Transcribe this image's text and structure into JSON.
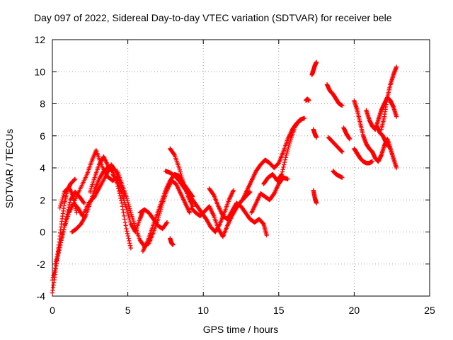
{
  "chart_data": {
    "type": "scatter",
    "title": "Day 097 of 2022, Sidereal Day-to-day VTEC variation (SDTVAR) for receiver bele",
    "xlabel": "GPS time / hours",
    "ylabel": "SDTVAR / TECUs",
    "xlim": [
      0,
      25
    ],
    "ylim": [
      -4,
      12
    ],
    "xticks": [
      "0",
      "5",
      "10",
      "15",
      "20",
      "25"
    ],
    "yticks": [
      "-4",
      "-2",
      "0",
      "2",
      "4",
      "6",
      "8",
      "10",
      "12"
    ],
    "grid": true,
    "marker": "plus",
    "color": "#ff0000",
    "series": [
      {
        "name": "s1",
        "x": [
          0.0,
          0.2,
          0.4,
          0.6,
          0.8,
          1.0,
          1.2,
          1.5
        ],
        "y": [
          -3.8,
          -2.5,
          -1.0,
          0.5,
          1.8,
          2.6,
          3.0,
          3.3
        ]
      },
      {
        "name": "s2",
        "x": [
          0.0,
          0.3,
          0.6,
          0.9,
          1.2,
          1.5,
          1.8,
          2.1
        ],
        "y": [
          -3.0,
          -1.8,
          -0.5,
          0.8,
          2.0,
          2.5,
          2.2,
          1.8
        ]
      },
      {
        "name": "s3",
        "x": [
          0.2,
          0.5,
          0.8,
          1.1,
          1.4,
          1.7,
          2.0
        ],
        "y": [
          -2.0,
          -0.8,
          0.3,
          1.2,
          1.8,
          1.5,
          1.0
        ]
      },
      {
        "name": "s4",
        "x": [
          0.5,
          0.8,
          1.1,
          1.4,
          1.6
        ],
        "y": [
          1.5,
          2.5,
          2.8,
          2.2,
          1.2
        ]
      },
      {
        "name": "s5",
        "x": [
          1.3,
          1.6,
          1.9,
          2.2,
          2.5,
          2.8,
          3.1,
          3.4,
          3.7,
          4.0,
          4.3,
          4.6,
          4.9,
          5.2
        ],
        "y": [
          0.0,
          0.2,
          0.5,
          1.0,
          1.8,
          2.6,
          3.3,
          3.8,
          4.0,
          3.8,
          3.0,
          1.8,
          0.2,
          -1.0
        ]
      },
      {
        "name": "s6",
        "x": [
          1.5,
          1.9,
          2.3,
          2.6,
          2.9,
          3.2,
          3.6,
          4.0,
          4.4
        ],
        "y": [
          2.0,
          2.8,
          3.6,
          4.4,
          5.1,
          4.3,
          3.5,
          3.2,
          3.5
        ]
      },
      {
        "name": "s7",
        "x": [
          2.0,
          2.4,
          2.8,
          3.2,
          3.6,
          3.9,
          4.2,
          4.5,
          4.8
        ],
        "y": [
          1.0,
          1.8,
          2.2,
          2.9,
          3.6,
          4.2,
          3.8,
          3.0,
          2.2
        ]
      },
      {
        "name": "s8",
        "x": [
          2.5,
          2.8,
          3.1,
          3.4,
          3.7
        ],
        "y": [
          2.5,
          3.4,
          4.2,
          4.7,
          4.1
        ]
      },
      {
        "name": "s9",
        "x": [
          4.3,
          4.6,
          4.9,
          5.2,
          5.5,
          5.8,
          6.1,
          6.4,
          6.7,
          7.0,
          7.3,
          7.6,
          7.9,
          8.2,
          8.5,
          8.8,
          9.1
        ],
        "y": [
          3.8,
          3.0,
          2.2,
          1.2,
          0.3,
          -0.5,
          -0.9,
          -0.7,
          0.0,
          0.8,
          1.8,
          2.6,
          3.2,
          3.0,
          2.4,
          1.8,
          1.2
        ]
      },
      {
        "name": "s10",
        "x": [
          4.0,
          4.3,
          4.6,
          4.9,
          5.2,
          5.5,
          5.8,
          6.0
        ],
        "y": [
          3.6,
          3.2,
          2.4,
          1.5,
          0.5,
          0.0,
          0.8,
          1.3
        ]
      },
      {
        "name": "s11",
        "x": [
          6.0,
          6.3,
          6.6,
          6.9,
          7.2,
          7.5,
          7.8,
          8.1,
          8.4,
          8.7,
          9.0,
          9.3
        ],
        "y": [
          -1.2,
          -0.6,
          0.2,
          1.0,
          1.8,
          2.6,
          3.2,
          3.6,
          3.5,
          3.0,
          2.6,
          2.2
        ]
      },
      {
        "name": "s12",
        "x": [
          5.8,
          6.1,
          6.4,
          6.7,
          7.0,
          7.3,
          7.6
        ],
        "y": [
          1.2,
          1.4,
          1.2,
          0.8,
          0.4,
          0.2,
          0.6
        ]
      },
      {
        "name": "s13",
        "x": [
          7.5,
          7.8,
          8.1,
          8.4,
          8.7,
          9.0,
          9.3,
          9.6
        ],
        "y": [
          3.8,
          3.7,
          3.5,
          3.2,
          2.8,
          2.4,
          2.0,
          1.6
        ]
      },
      {
        "name": "s14",
        "x": [
          7.8,
          8.1,
          8.4,
          8.7,
          9.0,
          9.3
        ],
        "y": [
          5.2,
          4.8,
          4.0,
          3.0,
          2.2,
          1.6
        ]
      },
      {
        "name": "s15",
        "x": [
          7.8,
          7.9,
          8.0
        ],
        "y": [
          -0.4,
          -0.7,
          -0.8
        ]
      },
      {
        "name": "s16",
        "x": [
          9.2,
          9.5,
          9.8,
          10.1,
          10.4,
          10.7,
          11.0,
          11.3,
          11.6,
          11.9,
          12.2,
          12.5,
          12.8,
          13.1
        ],
        "y": [
          1.5,
          1.2,
          1.0,
          1.3,
          1.6,
          1.0,
          0.2,
          -0.3,
          0.4,
          1.0,
          1.5,
          1.9,
          2.2,
          2.5
        ]
      },
      {
        "name": "s17",
        "x": [
          9.6,
          9.9,
          10.2,
          10.5,
          10.8,
          11.1,
          11.4,
          11.7,
          12.0
        ],
        "y": [
          1.6,
          1.2,
          0.8,
          0.3,
          0.0,
          0.5,
          1.2,
          2.0,
          2.6
        ]
      },
      {
        "name": "s18",
        "x": [
          10.4,
          10.7,
          11.0,
          11.3,
          11.6,
          11.9,
          12.2,
          12.5,
          12.8,
          13.1,
          13.4,
          13.7,
          14.0,
          14.2
        ],
        "y": [
          2.7,
          2.3,
          1.6,
          1.0,
          0.8,
          1.3,
          1.8,
          1.6,
          1.2,
          0.8,
          0.6,
          0.8,
          0.5,
          -0.2
        ]
      },
      {
        "name": "s19",
        "x": [
          12.6,
          12.9,
          13.2,
          13.5,
          13.8,
          14.1,
          14.4,
          14.7,
          15.0,
          15.3,
          15.6,
          15.9,
          16.2,
          16.5
        ],
        "y": [
          2.0,
          2.6,
          3.2,
          3.8,
          4.2,
          4.5,
          4.3,
          4.0,
          4.3,
          5.0,
          5.8,
          6.4,
          6.8,
          7.0
        ]
      },
      {
        "name": "s20",
        "x": [
          14.0,
          14.3,
          14.6,
          14.9,
          15.2,
          15.5,
          15.8,
          16.1,
          16.4,
          16.7
        ],
        "y": [
          3.0,
          3.4,
          3.6,
          3.2,
          3.6,
          4.8,
          5.8,
          6.6,
          7.0,
          7.1
        ]
      },
      {
        "name": "s21",
        "x": [
          13.2,
          13.5,
          13.8,
          14.1,
          14.4,
          14.7,
          15.0,
          15.3,
          15.6
        ],
        "y": [
          1.2,
          1.8,
          2.4,
          2.2,
          2.0,
          2.4,
          3.0,
          3.4,
          3.3
        ]
      },
      {
        "name": "s22",
        "x": [
          16.8,
          16.9,
          17.0
        ],
        "y": [
          8.2,
          8.3,
          8.2
        ]
      },
      {
        "name": "s23",
        "x": [
          17.2,
          17.3,
          17.4,
          17.5
        ],
        "y": [
          9.8,
          10.1,
          10.4,
          10.6
        ]
      },
      {
        "name": "s24",
        "x": [
          17.3,
          17.4,
          17.5
        ],
        "y": [
          6.4,
          6.1,
          5.9
        ]
      },
      {
        "name": "s25",
        "x": [
          17.3,
          17.4,
          17.5
        ],
        "y": [
          2.6,
          2.1,
          1.8
        ]
      },
      {
        "name": "s26",
        "x": [
          18.2,
          18.4,
          18.6,
          18.8,
          19.0,
          19.2
        ],
        "y": [
          9.2,
          8.8,
          8.6,
          8.3,
          8.0,
          7.9
        ]
      },
      {
        "name": "s27",
        "x": [
          18.3,
          18.6,
          18.9,
          19.2
        ],
        "y": [
          5.9,
          5.6,
          5.3,
          5.0
        ]
      },
      {
        "name": "s28",
        "x": [
          18.6,
          18.8,
          19.0,
          19.2
        ],
        "y": [
          3.8,
          3.6,
          3.5,
          3.4
        ]
      },
      {
        "name": "s29",
        "x": [
          19.3,
          19.5,
          19.7
        ],
        "y": [
          6.5,
          6.1,
          5.8
        ]
      },
      {
        "name": "s30",
        "x": [
          20.0,
          20.2,
          20.4,
          20.6,
          20.8,
          21.0,
          21.2,
          21.4,
          21.6,
          21.8,
          22.0,
          22.2,
          22.4,
          22.6,
          22.8
        ],
        "y": [
          8.2,
          7.6,
          6.8,
          6.0,
          5.5,
          5.2,
          5.0,
          4.6,
          4.4,
          4.8,
          5.4,
          5.8,
          5.2,
          4.6,
          4.0
        ]
      },
      {
        "name": "s31",
        "x": [
          20.0,
          20.2,
          20.4,
          20.6,
          20.8,
          21.0,
          21.2
        ],
        "y": [
          5.2,
          4.9,
          4.6,
          4.4,
          4.3,
          4.3,
          4.4
        ]
      },
      {
        "name": "s32",
        "x": [
          20.8,
          21.0,
          21.2,
          21.4,
          21.6,
          21.8,
          22.0,
          22.2,
          22.4,
          22.6,
          22.8
        ],
        "y": [
          7.6,
          7.0,
          6.6,
          6.4,
          7.0,
          7.6,
          8.0,
          8.4,
          8.2,
          7.8,
          7.2
        ]
      },
      {
        "name": "s33",
        "x": [
          21.8,
          22.0,
          22.2,
          22.4,
          22.6,
          22.8
        ],
        "y": [
          6.4,
          7.2,
          8.4,
          9.2,
          9.8,
          10.3
        ]
      },
      {
        "name": "s34",
        "x": [
          21.5,
          21.7,
          21.9,
          22.1,
          22.3
        ],
        "y": [
          6.6,
          6.2,
          6.0,
          5.6,
          5.3
        ]
      }
    ]
  }
}
